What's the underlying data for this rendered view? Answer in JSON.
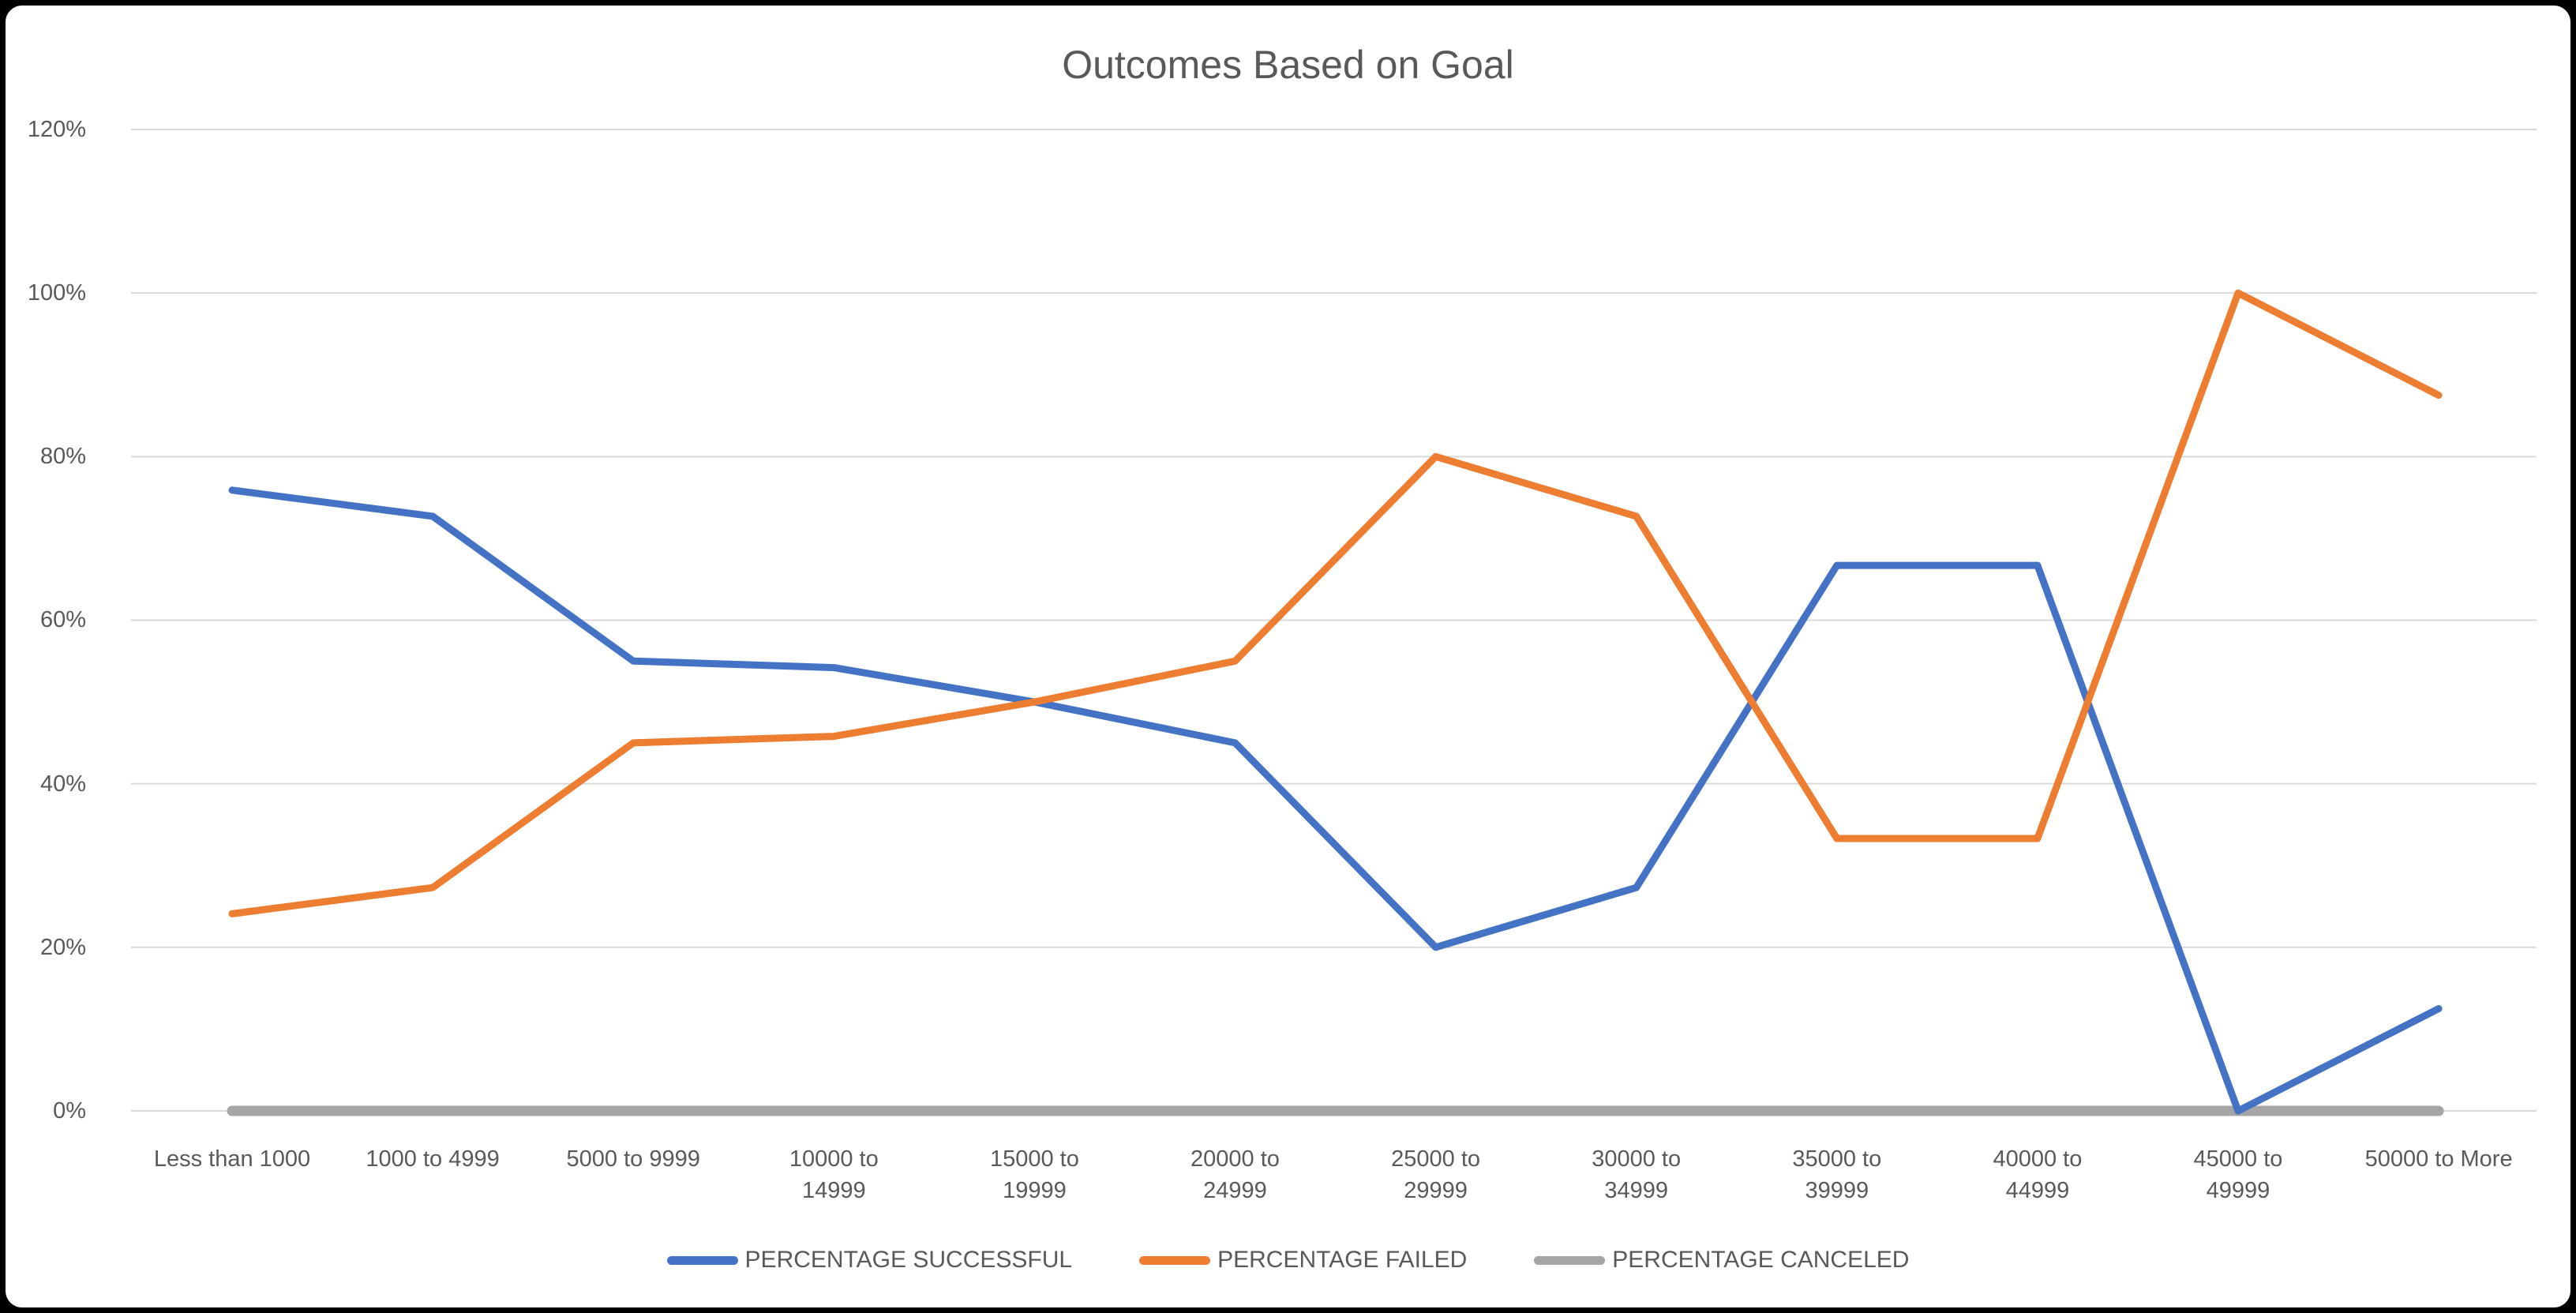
{
  "frame": {
    "background": "#000000",
    "inner_background": "#FFFFFF"
  },
  "chart_data": {
    "type": "line",
    "title": "Outcomes Based on Goal",
    "categories": [
      "Less than 1000",
      "1000 to 4999",
      "5000 to 9999",
      "10000 to 14999",
      "15000 to 19999",
      "20000 to 24999",
      "25000 to 29999",
      "30000 to 34999",
      "35000 to 39999",
      "40000 to 44999",
      "45000 to 49999",
      "50000 to More"
    ],
    "series": [
      {
        "name": "PERCENTAGE SUCCESSFUL",
        "color": "#4472C4",
        "values": [
          75.9,
          72.7,
          55,
          54.2,
          50,
          45,
          20,
          27.3,
          66.7,
          66.7,
          0,
          12.5
        ]
      },
      {
        "name": "PERCENTAGE FAILED",
        "color": "#ED7D31",
        "values": [
          24.1,
          27.3,
          45,
          45.8,
          50,
          55,
          80,
          72.7,
          33.3,
          33.3,
          100,
          87.5
        ]
      },
      {
        "name": "PERCENTAGE CANCELED",
        "color": "#A5A5A5",
        "values": [
          0,
          0,
          0,
          0,
          0,
          0,
          0,
          0,
          0,
          0,
          0,
          0
        ]
      }
    ],
    "y_axis": {
      "min": 0,
      "max": 120,
      "step": 20,
      "tick_labels": [
        "0%",
        "20%",
        "40%",
        "60%",
        "80%",
        "100%",
        "120%"
      ]
    },
    "grid": true,
    "legend_position": "bottom",
    "styles": {
      "gridline_color": "#D9D9D9",
      "text_color": "#595959"
    }
  }
}
